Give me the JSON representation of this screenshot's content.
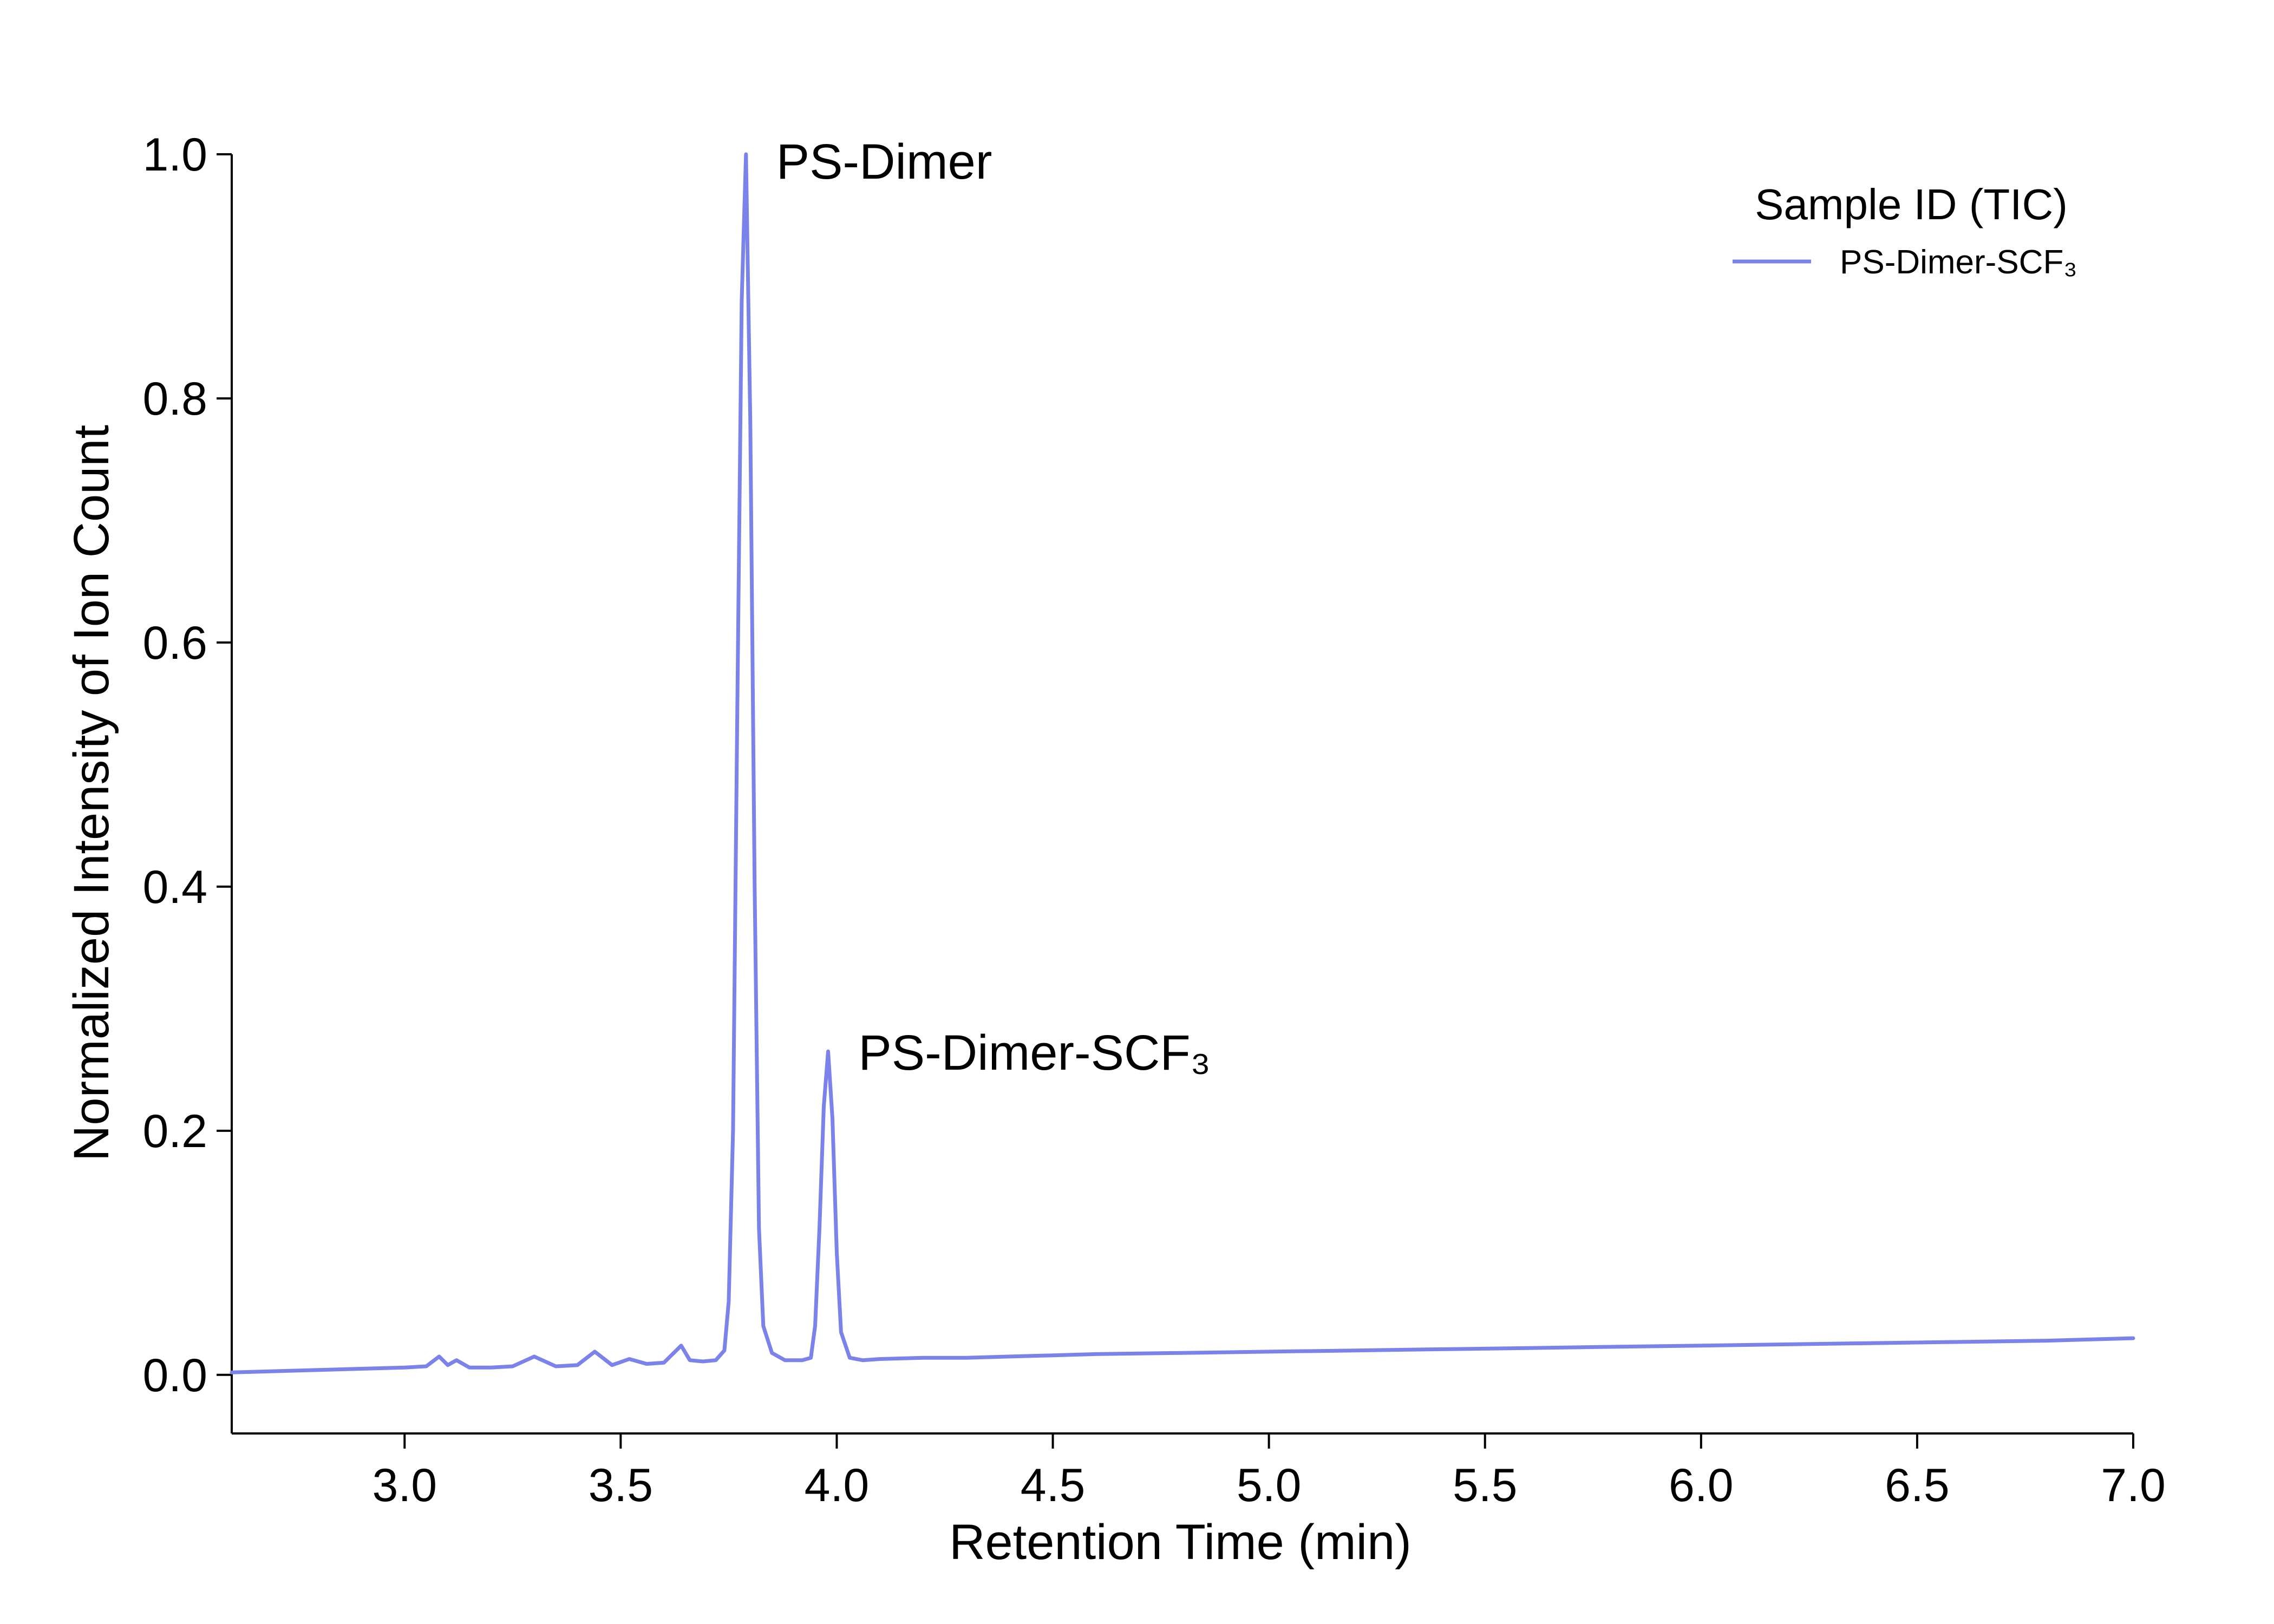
{
  "chart_data": {
    "type": "line",
    "title": "",
    "xlabel": "Retention Time (min)",
    "ylabel": "Normalized Intensity of Ion Count",
    "xlim": [
      2.6,
      7.0
    ],
    "ylim": [
      -0.048,
      1.0
    ],
    "x_ticks": [
      3.0,
      3.5,
      4.0,
      4.5,
      5.0,
      5.5,
      6.0,
      6.5,
      7.0
    ],
    "x_tick_labels": [
      "3.0",
      "3.5",
      "4.0",
      "4.5",
      "5.0",
      "5.5",
      "6.0",
      "6.5",
      "7.0"
    ],
    "y_ticks": [
      0.0,
      0.2,
      0.4,
      0.6,
      0.8,
      1.0
    ],
    "y_tick_labels": [
      "0.0",
      "0.2",
      "0.4",
      "0.6",
      "0.8",
      "1.0"
    ],
    "grid": false,
    "legend": {
      "title": "Sample ID (TIC)",
      "placement": "top-right"
    },
    "series": [
      {
        "name": "PS-Dimer-SCF₃",
        "color": "#7b83eb",
        "x": [
          2.6,
          2.8,
          3.0,
          3.05,
          3.08,
          3.1,
          3.12,
          3.15,
          3.2,
          3.25,
          3.3,
          3.35,
          3.4,
          3.44,
          3.48,
          3.52,
          3.56,
          3.6,
          3.64,
          3.66,
          3.69,
          3.72,
          3.74,
          3.75,
          3.76,
          3.77,
          3.78,
          3.79,
          3.8,
          3.81,
          3.82,
          3.83,
          3.85,
          3.88,
          3.92,
          3.94,
          3.95,
          3.96,
          3.97,
          3.98,
          3.99,
          4.0,
          4.01,
          4.03,
          4.06,
          4.1,
          4.2,
          4.3,
          4.4,
          4.5,
          4.6,
          4.8,
          5.0,
          5.2,
          5.4,
          5.6,
          5.8,
          6.0,
          6.2,
          6.4,
          6.6,
          6.8,
          7.0
        ],
        "y": [
          0.002,
          0.004,
          0.006,
          0.007,
          0.015,
          0.008,
          0.012,
          0.006,
          0.006,
          0.007,
          0.015,
          0.007,
          0.008,
          0.019,
          0.008,
          0.013,
          0.009,
          0.01,
          0.024,
          0.012,
          0.011,
          0.012,
          0.02,
          0.06,
          0.2,
          0.55,
          0.88,
          1.0,
          0.78,
          0.4,
          0.12,
          0.04,
          0.018,
          0.012,
          0.012,
          0.014,
          0.04,
          0.12,
          0.22,
          0.265,
          0.21,
          0.1,
          0.035,
          0.014,
          0.012,
          0.013,
          0.014,
          0.014,
          0.015,
          0.016,
          0.017,
          0.018,
          0.019,
          0.02,
          0.021,
          0.022,
          0.023,
          0.024,
          0.025,
          0.026,
          0.027,
          0.028,
          0.03
        ]
      }
    ],
    "annotations": [
      {
        "text": "PS-Dimer",
        "x": 3.86,
        "y": 0.98
      },
      {
        "text": "PS-Dimer-SCF₃",
        "x": 4.05,
        "y": 0.25
      }
    ]
  }
}
